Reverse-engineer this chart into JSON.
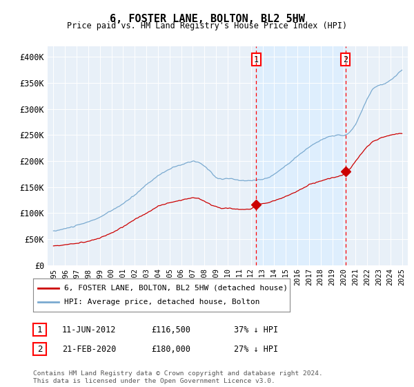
{
  "title": "6, FOSTER LANE, BOLTON, BL2 5HW",
  "subtitle": "Price paid vs. HM Land Registry's House Price Index (HPI)",
  "legend_line1": "6, FOSTER LANE, BOLTON, BL2 5HW (detached house)",
  "legend_line2": "HPI: Average price, detached house, Bolton",
  "footer": "Contains HM Land Registry data © Crown copyright and database right 2024.\nThis data is licensed under the Open Government Licence v3.0.",
  "sale1_label": "1",
  "sale1_date": "11-JUN-2012",
  "sale1_price": "£116,500",
  "sale1_hpi": "37% ↓ HPI",
  "sale2_label": "2",
  "sale2_date": "21-FEB-2020",
  "sale2_price": "£180,000",
  "sale2_hpi": "27% ↓ HPI",
  "sale1_year": 2012.45,
  "sale2_year": 2020.13,
  "sale1_price_val": 116500,
  "sale2_price_val": 180000,
  "red_color": "#cc0000",
  "blue_color": "#7aaad0",
  "shade_color": "#ddeeff",
  "background_color": "#e8f0f8",
  "ylim": [
    0,
    420000
  ],
  "xlim_start": 1994.5,
  "xlim_end": 2025.5,
  "yticks": [
    0,
    50000,
    100000,
    150000,
    200000,
    250000,
    300000,
    350000,
    400000
  ],
  "ytick_labels": [
    "£0",
    "£50K",
    "£100K",
    "£150K",
    "£200K",
    "£250K",
    "£300K",
    "£350K",
    "£400K"
  ],
  "xticks": [
    1995,
    1996,
    1997,
    1998,
    1999,
    2000,
    2001,
    2002,
    2003,
    2004,
    2005,
    2006,
    2007,
    2008,
    2009,
    2010,
    2011,
    2012,
    2013,
    2014,
    2015,
    2016,
    2017,
    2018,
    2019,
    2020,
    2021,
    2022,
    2023,
    2024,
    2025
  ]
}
